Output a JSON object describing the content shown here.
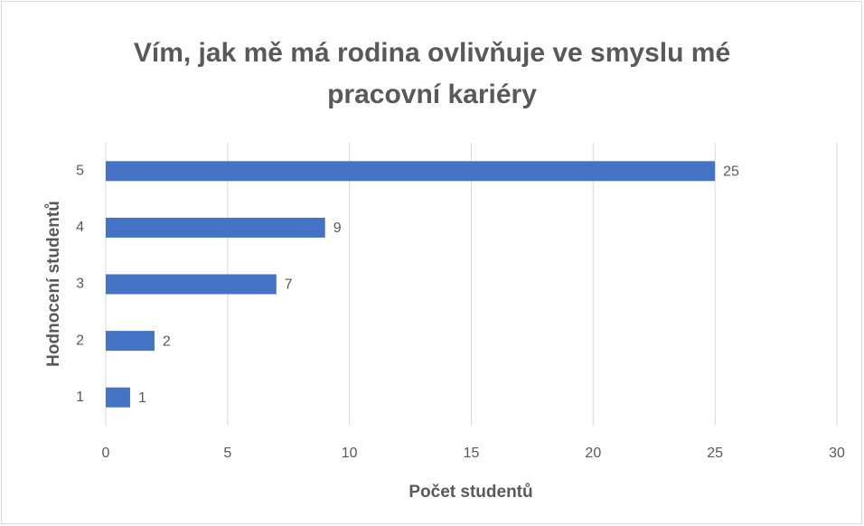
{
  "chart_data": {
    "type": "bar",
    "orientation": "horizontal",
    "title": "Vím, jak mě má rodina ovlivňuje ve smyslu mé pracovní kariéry",
    "x_label": "Počet studentů",
    "y_label": "Hodnocení studentů",
    "categories": [
      "1",
      "2",
      "3",
      "4",
      "5"
    ],
    "values": [
      1,
      2,
      7,
      9,
      25
    ],
    "color": "#4472c4",
    "xlim": [
      0,
      30
    ],
    "xticks": [
      0,
      5,
      10,
      15,
      20,
      25,
      30
    ],
    "grid": true
  }
}
